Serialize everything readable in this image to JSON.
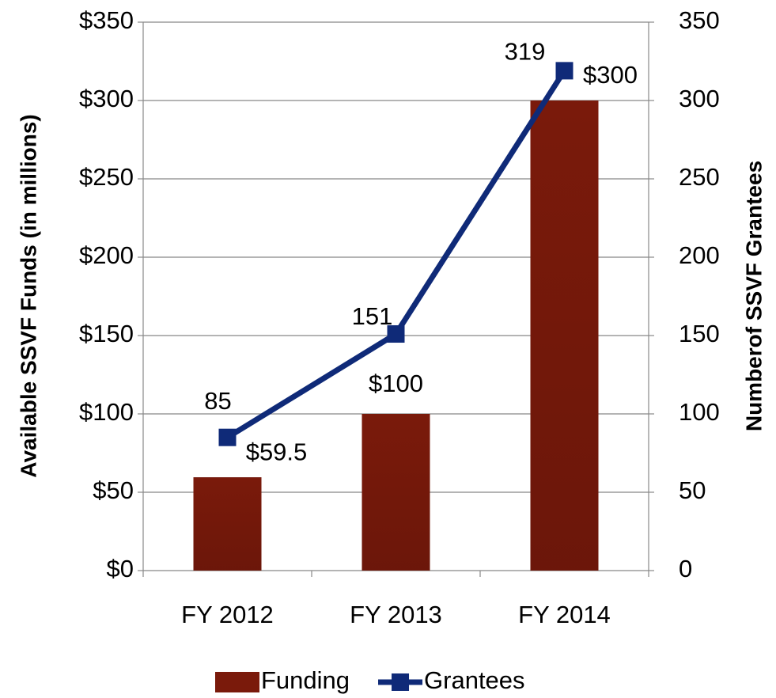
{
  "chart_data": {
    "type": "bar_line",
    "categories": [
      "FY 2012",
      "FY 2013",
      "FY 2014"
    ],
    "series": [
      {
        "name": "Funding",
        "color": "#7a1a0b",
        "type": "bar",
        "values": [
          59.5,
          100,
          300
        ],
        "value_labels": [
          "$59.5",
          "$100",
          "$300"
        ]
      },
      {
        "name": "Grantees",
        "color": "#0f2a78",
        "type": "line",
        "axis": "y2",
        "values": [
          85,
          151,
          319
        ]
      }
    ],
    "ylabel": "Available SSVF Funds (in millions)",
    "y2label": "Numberof SSVF Grantees",
    "ylim": [
      0,
      350
    ],
    "yticks": [
      {
        "value": 0,
        "label": "$0"
      },
      {
        "value": 50,
        "label": "$50"
      },
      {
        "value": 100,
        "label": "$100"
      },
      {
        "value": 150,
        "label": "$150"
      },
      {
        "value": 200,
        "label": "$200"
      },
      {
        "value": 250,
        "label": "$250"
      },
      {
        "value": 300,
        "label": "$300"
      },
      {
        "value": 350,
        "label": "$350"
      }
    ],
    "y2lim": [
      0,
      350
    ],
    "y2ticks": [
      0,
      50,
      100,
      150,
      200,
      250,
      300,
      350
    ],
    "grid": true,
    "legend": "bottom"
  }
}
